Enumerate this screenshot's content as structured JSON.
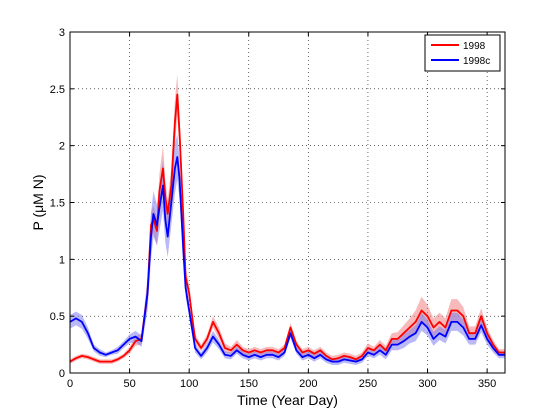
{
  "chart_data": {
    "type": "line",
    "title": "",
    "xlabel": "Time (Year Day)",
    "ylabel": "P (μM N)",
    "xlim": [
      0,
      365
    ],
    "ylim": [
      0,
      3
    ],
    "xticks": [
      0,
      50,
      100,
      150,
      200,
      250,
      300,
      350
    ],
    "yticks": [
      0,
      0.5,
      1,
      1.5,
      2,
      2.5,
      3
    ],
    "xtick_labels": [
      "0",
      "50",
      "100",
      "150",
      "200",
      "250",
      "300",
      "350"
    ],
    "ytick_labels": [
      "0",
      "0.5",
      "1",
      "1.5",
      "2",
      "2.5",
      "3"
    ],
    "grid": true,
    "legend_position": "top-right",
    "series": [
      {
        "name": "1998",
        "color": "#ff0000",
        "band_color": "#f08080",
        "x": [
          0,
          5,
          10,
          15,
          20,
          25,
          30,
          35,
          40,
          45,
          50,
          55,
          60,
          65,
          68,
          70,
          73,
          75,
          78,
          80,
          82,
          85,
          88,
          90,
          92,
          95,
          97,
          100,
          103,
          105,
          110,
          115,
          120,
          125,
          130,
          135,
          140,
          145,
          150,
          155,
          160,
          165,
          170,
          175,
          180,
          185,
          190,
          195,
          200,
          205,
          210,
          215,
          220,
          225,
          230,
          235,
          240,
          245,
          250,
          255,
          260,
          265,
          270,
          275,
          280,
          285,
          290,
          295,
          300,
          305,
          310,
          315,
          320,
          325,
          330,
          335,
          340,
          345,
          350,
          355,
          360,
          365
        ],
        "values": [
          0.1,
          0.13,
          0.15,
          0.14,
          0.12,
          0.1,
          0.1,
          0.1,
          0.12,
          0.15,
          0.2,
          0.28,
          0.3,
          0.7,
          1.3,
          1.35,
          1.25,
          1.6,
          1.8,
          1.55,
          1.4,
          1.65,
          2.2,
          2.45,
          2.1,
          1.4,
          0.85,
          0.7,
          0.45,
          0.3,
          0.22,
          0.3,
          0.45,
          0.35,
          0.22,
          0.2,
          0.25,
          0.2,
          0.18,
          0.2,
          0.18,
          0.2,
          0.2,
          0.18,
          0.22,
          0.4,
          0.25,
          0.18,
          0.2,
          0.17,
          0.2,
          0.15,
          0.12,
          0.13,
          0.15,
          0.14,
          0.12,
          0.15,
          0.22,
          0.2,
          0.25,
          0.2,
          0.3,
          0.3,
          0.35,
          0.4,
          0.45,
          0.55,
          0.5,
          0.4,
          0.45,
          0.4,
          0.55,
          0.55,
          0.5,
          0.35,
          0.35,
          0.5,
          0.35,
          0.25,
          0.18,
          0.18
        ],
        "band_halfwidth": [
          0.02,
          0.02,
          0.02,
          0.02,
          0.02,
          0.02,
          0.02,
          0.02,
          0.02,
          0.02,
          0.03,
          0.04,
          0.05,
          0.1,
          0.12,
          0.12,
          0.12,
          0.15,
          0.2,
          0.15,
          0.12,
          0.15,
          0.2,
          0.18,
          0.15,
          0.12,
          0.08,
          0.06,
          0.05,
          0.04,
          0.03,
          0.04,
          0.05,
          0.05,
          0.04,
          0.03,
          0.04,
          0.03,
          0.03,
          0.03,
          0.03,
          0.03,
          0.03,
          0.03,
          0.03,
          0.04,
          0.03,
          0.03,
          0.03,
          0.03,
          0.03,
          0.03,
          0.03,
          0.03,
          0.03,
          0.03,
          0.03,
          0.03,
          0.04,
          0.03,
          0.04,
          0.04,
          0.05,
          0.06,
          0.07,
          0.08,
          0.1,
          0.12,
          0.1,
          0.08,
          0.08,
          0.08,
          0.1,
          0.1,
          0.08,
          0.06,
          0.06,
          0.07,
          0.05,
          0.04,
          0.03,
          0.03
        ]
      },
      {
        "name": "1998c",
        "color": "#0000ff",
        "band_color": "#8080f0",
        "x": [
          0,
          5,
          10,
          15,
          20,
          25,
          30,
          35,
          40,
          45,
          50,
          55,
          60,
          65,
          68,
          70,
          73,
          75,
          78,
          80,
          82,
          85,
          88,
          90,
          92,
          95,
          97,
          100,
          103,
          105,
          110,
          115,
          120,
          125,
          130,
          135,
          140,
          145,
          150,
          155,
          160,
          165,
          170,
          175,
          180,
          185,
          190,
          195,
          200,
          205,
          210,
          215,
          220,
          225,
          230,
          235,
          240,
          245,
          250,
          255,
          260,
          265,
          270,
          275,
          280,
          285,
          290,
          295,
          300,
          305,
          310,
          315,
          320,
          325,
          330,
          335,
          340,
          345,
          350,
          355,
          360,
          365
        ],
        "values": [
          0.45,
          0.48,
          0.45,
          0.35,
          0.22,
          0.18,
          0.16,
          0.18,
          0.2,
          0.25,
          0.3,
          0.32,
          0.28,
          0.7,
          1.2,
          1.4,
          1.3,
          1.45,
          1.65,
          1.35,
          1.2,
          1.5,
          1.8,
          1.9,
          1.7,
          1.1,
          0.75,
          0.55,
          0.35,
          0.22,
          0.15,
          0.22,
          0.32,
          0.25,
          0.16,
          0.15,
          0.2,
          0.16,
          0.14,
          0.16,
          0.14,
          0.16,
          0.16,
          0.14,
          0.18,
          0.35,
          0.2,
          0.14,
          0.16,
          0.13,
          0.16,
          0.12,
          0.1,
          0.1,
          0.12,
          0.11,
          0.1,
          0.12,
          0.18,
          0.16,
          0.2,
          0.16,
          0.25,
          0.25,
          0.28,
          0.32,
          0.35,
          0.45,
          0.4,
          0.3,
          0.35,
          0.32,
          0.45,
          0.45,
          0.4,
          0.3,
          0.3,
          0.42,
          0.3,
          0.22,
          0.16,
          0.16
        ],
        "band_halfwidth": [
          0.06,
          0.06,
          0.06,
          0.05,
          0.03,
          0.03,
          0.02,
          0.02,
          0.03,
          0.03,
          0.04,
          0.05,
          0.05,
          0.15,
          0.2,
          0.2,
          0.18,
          0.2,
          0.22,
          0.2,
          0.18,
          0.2,
          0.22,
          0.2,
          0.18,
          0.12,
          0.08,
          0.06,
          0.05,
          0.04,
          0.03,
          0.04,
          0.05,
          0.04,
          0.03,
          0.03,
          0.03,
          0.03,
          0.03,
          0.03,
          0.03,
          0.03,
          0.03,
          0.03,
          0.03,
          0.04,
          0.03,
          0.03,
          0.03,
          0.03,
          0.03,
          0.03,
          0.03,
          0.03,
          0.03,
          0.03,
          0.03,
          0.03,
          0.03,
          0.03,
          0.04,
          0.04,
          0.05,
          0.05,
          0.06,
          0.06,
          0.07,
          0.08,
          0.07,
          0.06,
          0.06,
          0.06,
          0.08,
          0.08,
          0.07,
          0.05,
          0.05,
          0.06,
          0.05,
          0.04,
          0.03,
          0.03
        ]
      }
    ]
  }
}
